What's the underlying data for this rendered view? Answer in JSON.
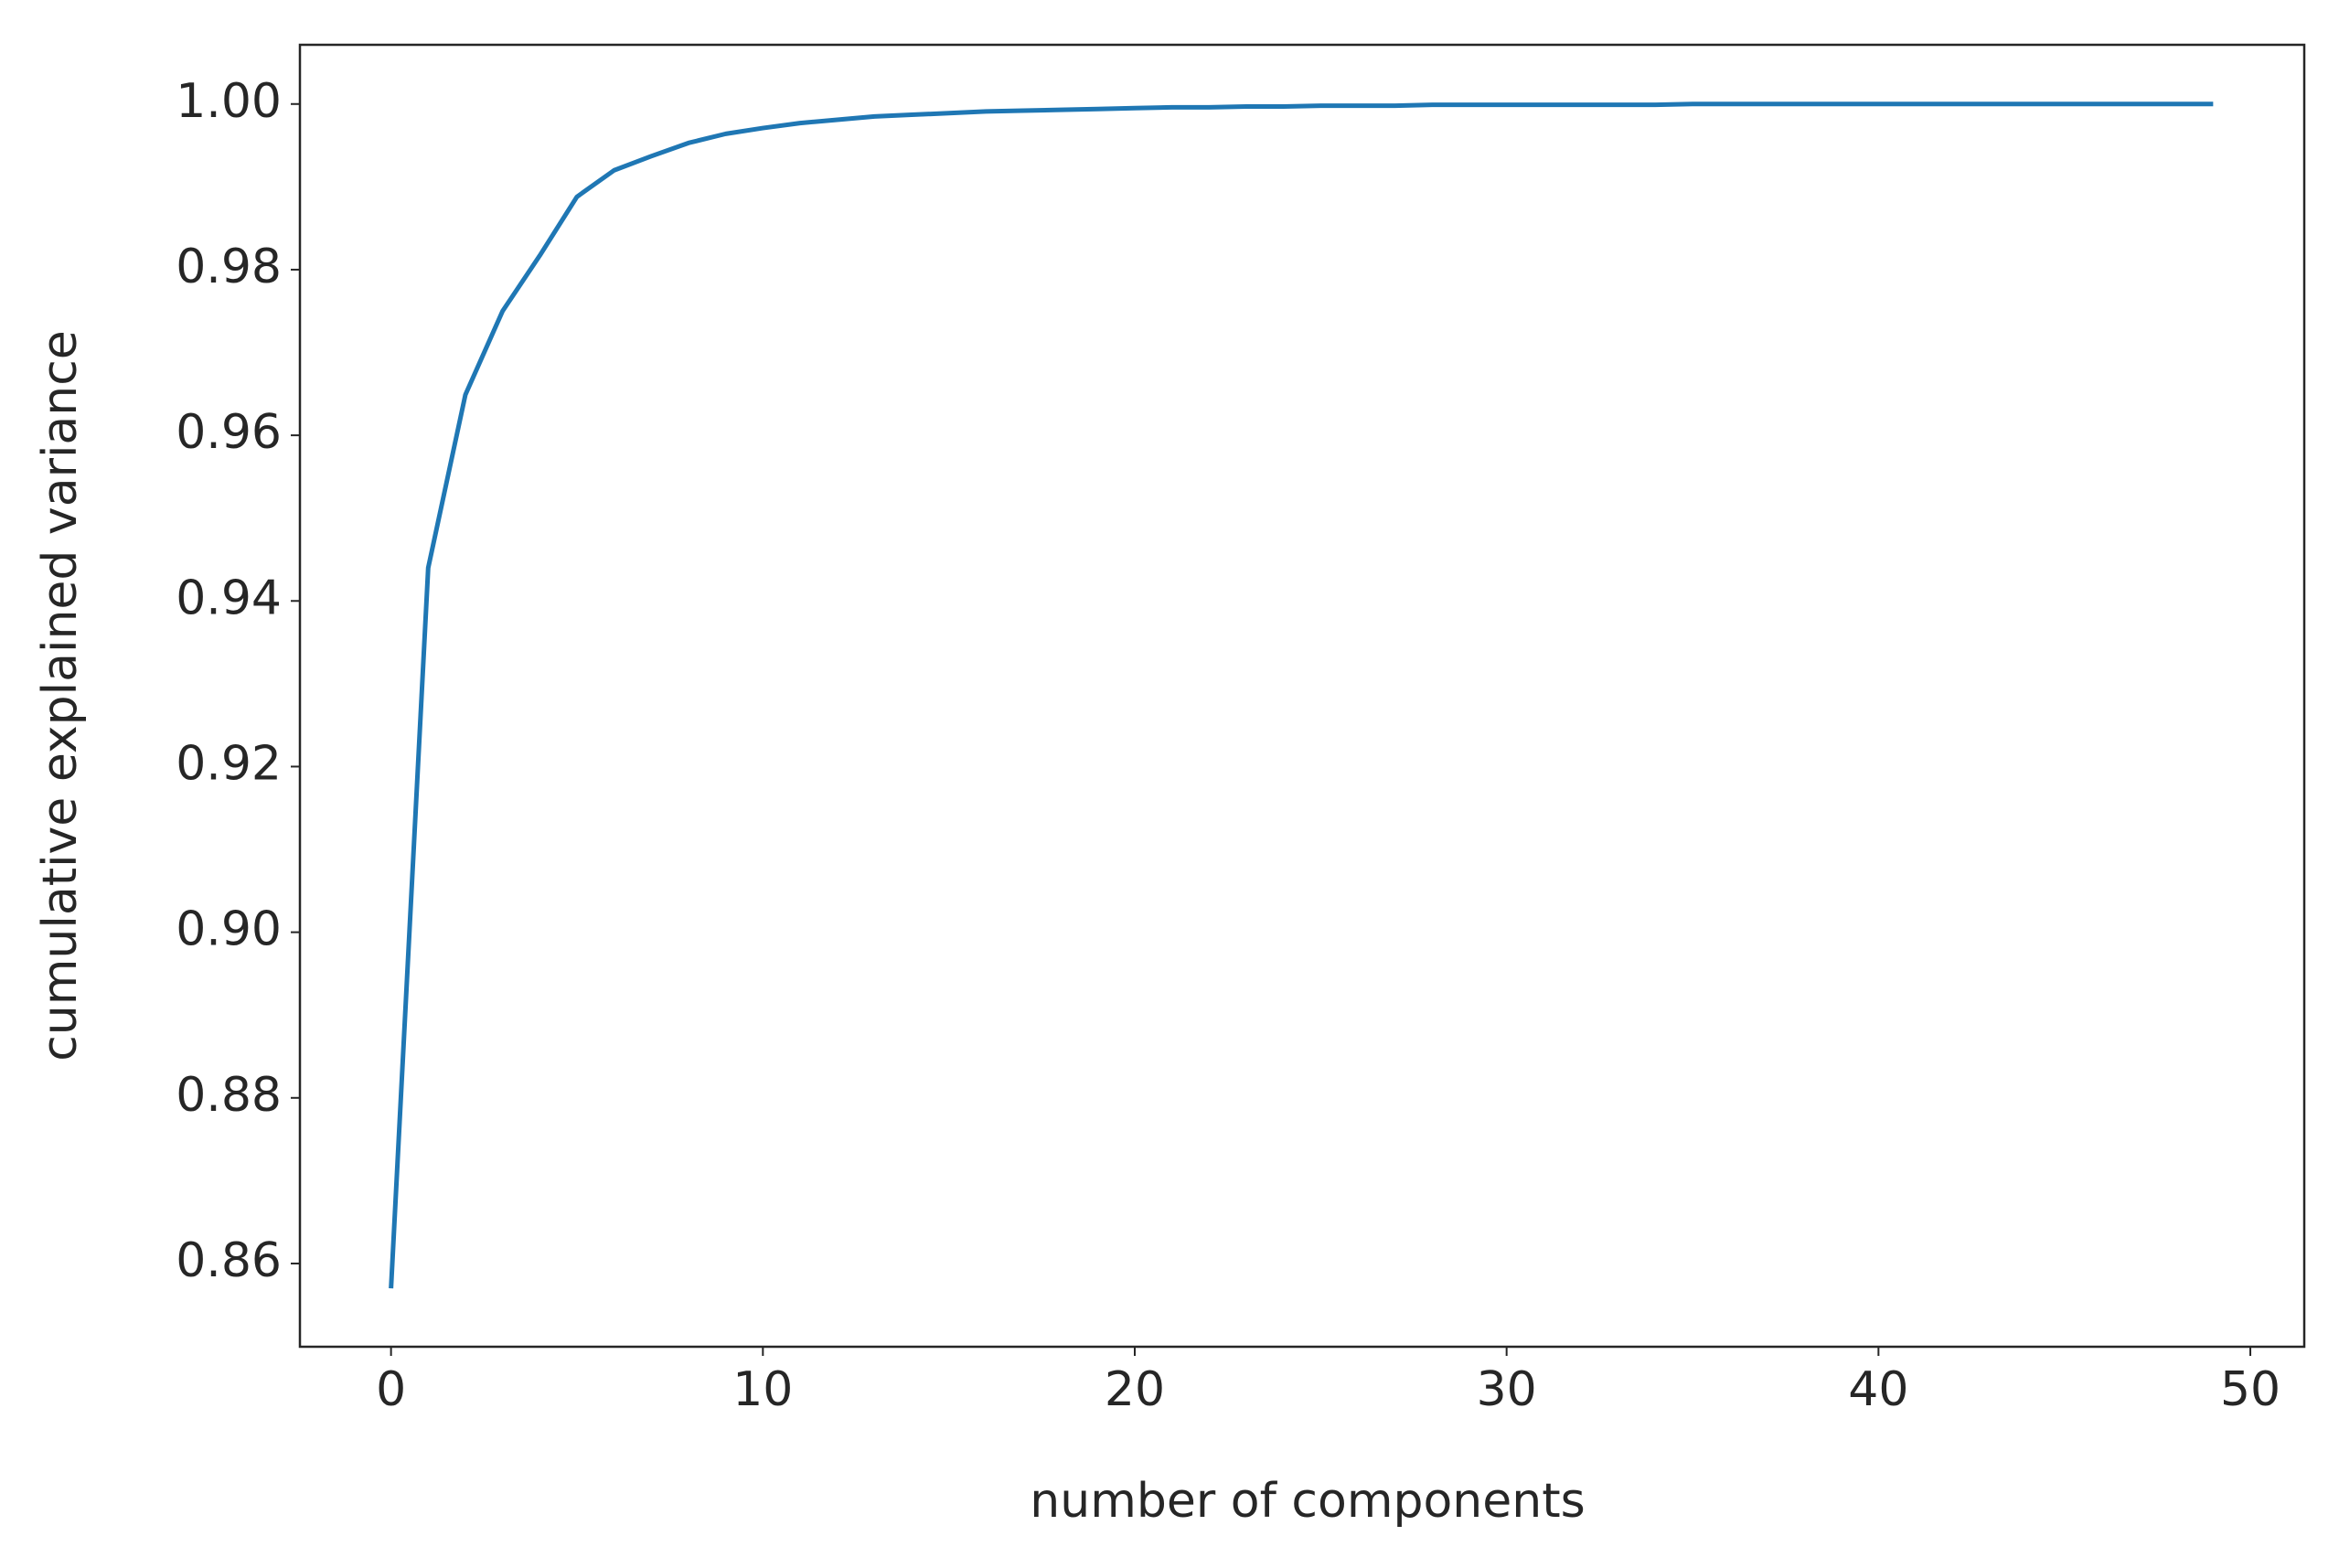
{
  "chart_data": {
    "type": "line",
    "xlabel": "number of components",
    "ylabel": "cumulative explained variance",
    "x": [
      0,
      1,
      2,
      3,
      4,
      5,
      6,
      7,
      8,
      9,
      10,
      11,
      12,
      13,
      14,
      15,
      16,
      17,
      18,
      19,
      20,
      21,
      22,
      23,
      24,
      25,
      26,
      27,
      28,
      29,
      30,
      31,
      32,
      33,
      34,
      35,
      36,
      37,
      38,
      39,
      40,
      41,
      42,
      43,
      44,
      45,
      46,
      47,
      48,
      49
    ],
    "values": [
      0.857,
      0.944,
      0.9649,
      0.975,
      0.9817,
      0.9888,
      0.992,
      0.9937,
      0.9953,
      0.9964,
      0.9971,
      0.9977,
      0.9981,
      0.9985,
      0.9987,
      0.9989,
      0.9991,
      0.9992,
      0.9993,
      0.9994,
      0.9995,
      0.9996,
      0.9996,
      0.9997,
      0.9997,
      0.9998,
      0.9998,
      0.9998,
      0.9999,
      0.9999,
      0.9999,
      0.9999,
      0.9999,
      0.9999,
      0.9999,
      1.0,
      1.0,
      1.0,
      1.0,
      1.0,
      1.0,
      1.0,
      1.0,
      1.0,
      1.0,
      1.0,
      1.0,
      1.0,
      1.0,
      1.0
    ],
    "color": "#1f77b4",
    "xlim": [
      -2.45,
      51.45
    ],
    "ylim": [
      0.84995,
      1.00715
    ],
    "xticks": [
      0,
      10,
      20,
      30,
      40,
      50
    ],
    "yticks": [
      0.86,
      0.88,
      {
        "value": 0.9,
        "label": "0.90"
      },
      0.92,
      0.94,
      0.96,
      0.98,
      {
        "value": 1.0,
        "label": "1.00"
      }
    ],
    "grid": false
  }
}
